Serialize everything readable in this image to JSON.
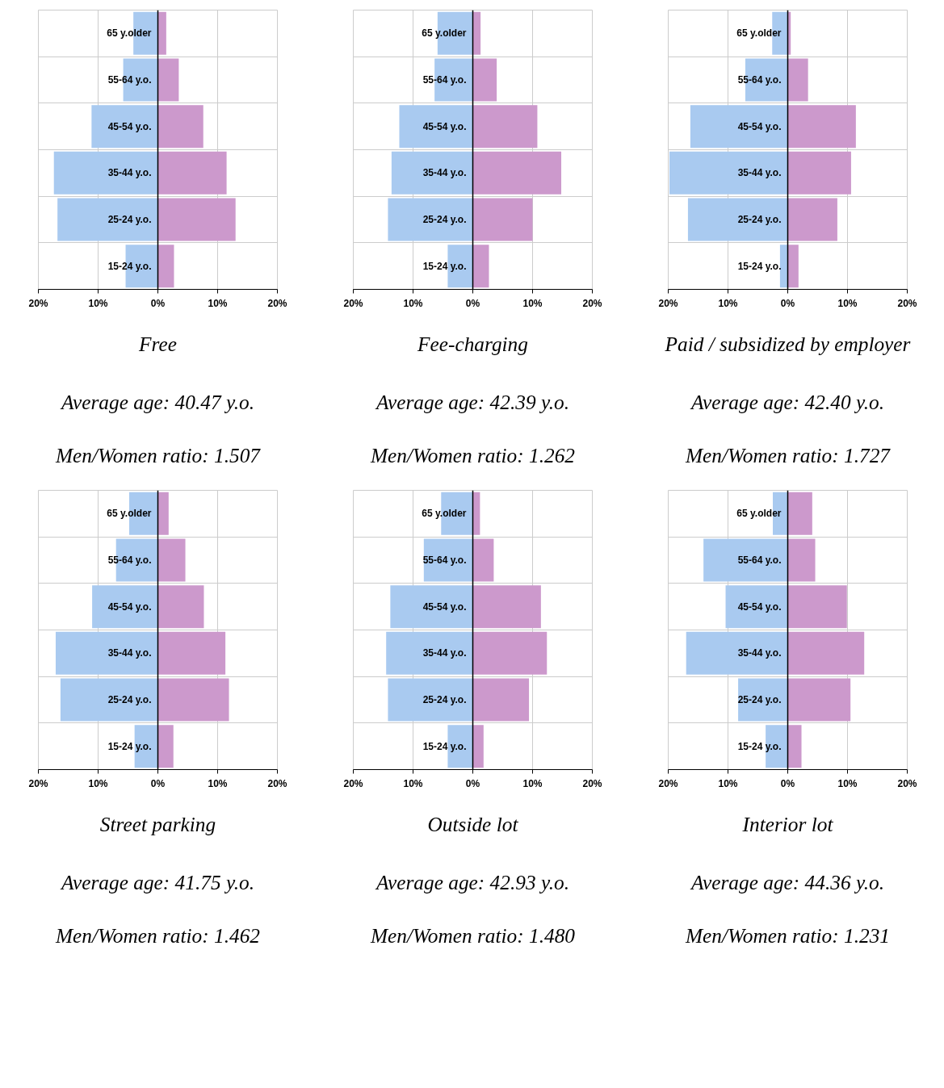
{
  "chart_data": [
    {
      "type": "bar",
      "orientation": "horizontal",
      "stacked": true,
      "title": "Free",
      "annotations": [
        "Average age: 40.47 y.o.",
        "Men/Women ratio: 1.507"
      ],
      "categories": [
        "65 y.older",
        "55-64 y.o.",
        "45-54 y.o.",
        "35-44 y.o.",
        "25-24 y.o.",
        "15-24 y.o."
      ],
      "series": [
        {
          "color": "#a9caf0",
          "values": [
            -4.1,
            -5.8,
            -11.1,
            -17.4,
            -16.8,
            -5.4
          ]
        },
        {
          "color": "#cc99cc",
          "values": [
            1.4,
            3.5,
            7.6,
            11.5,
            13.0,
            2.7
          ]
        }
      ],
      "xlim": [
        -20,
        20
      ],
      "xticks": [
        {
          "value": -20,
          "label": "20%"
        },
        {
          "value": -10,
          "label": "10%"
        },
        {
          "value": 0,
          "label": "0%"
        },
        {
          "value": 10,
          "label": "10%"
        },
        {
          "value": 20,
          "label": "20%"
        }
      ],
      "grid": true
    },
    {
      "type": "bar",
      "orientation": "horizontal",
      "stacked": true,
      "title": "Fee-charging",
      "annotations": [
        "Average age: 42.39 y.o.",
        "Men/Women ratio: 1.262"
      ],
      "categories": [
        "65 y.older",
        "55-64 y.o.",
        "45-54 y.o.",
        "35-44 y.o.",
        "25-24 y.o.",
        "15-24 y.o."
      ],
      "series": [
        {
          "color": "#a9caf0",
          "values": [
            -5.9,
            -6.4,
            -12.3,
            -13.6,
            -14.2,
            -4.2
          ]
        },
        {
          "color": "#cc99cc",
          "values": [
            1.3,
            4.0,
            10.8,
            14.8,
            10.0,
            2.7
          ]
        }
      ],
      "xlim": [
        -20,
        20
      ],
      "xticks": [
        {
          "value": -20,
          "label": "20%"
        },
        {
          "value": -10,
          "label": "10%"
        },
        {
          "value": 0,
          "label": "0%"
        },
        {
          "value": 10,
          "label": "10%"
        },
        {
          "value": 20,
          "label": "20%"
        }
      ],
      "grid": true
    },
    {
      "type": "bar",
      "orientation": "horizontal",
      "stacked": true,
      "title": "Paid / subsidized by employer",
      "annotations": [
        "Average age: 42.40 y.o.",
        "Men/Women ratio: 1.727"
      ],
      "categories": [
        "65 y.older",
        "55-64 y.o.",
        "45-54 y.o.",
        "35-44 y.o.",
        "25-24 y.o.",
        "15-24 y.o."
      ],
      "series": [
        {
          "color": "#a9caf0",
          "values": [
            -2.6,
            -7.1,
            -16.3,
            -19.8,
            -16.7,
            -1.3
          ]
        },
        {
          "color": "#cc99cc",
          "values": [
            0.5,
            3.4,
            11.4,
            10.6,
            8.3,
            1.8
          ]
        }
      ],
      "xlim": [
        -20,
        20
      ],
      "xticks": [
        {
          "value": -20,
          "label": "20%"
        },
        {
          "value": -10,
          "label": "10%"
        },
        {
          "value": 0,
          "label": "0%"
        },
        {
          "value": 10,
          "label": "10%"
        },
        {
          "value": 20,
          "label": "20%"
        }
      ],
      "grid": true
    },
    {
      "type": "bar",
      "orientation": "horizontal",
      "stacked": true,
      "title": "Street parking",
      "annotations": [
        "Average age: 41.75 y.o.",
        "Men/Women ratio: 1.462"
      ],
      "categories": [
        "65 y.older",
        "55-64 y.o.",
        "45-54 y.o.",
        "35-44 y.o.",
        "25-24 y.o.",
        "15-24 y.o."
      ],
      "series": [
        {
          "color": "#a9caf0",
          "values": [
            -4.8,
            -7.0,
            -11.0,
            -17.1,
            -16.3,
            -3.9
          ]
        },
        {
          "color": "#cc99cc",
          "values": [
            1.8,
            4.6,
            7.7,
            11.3,
            11.9,
            2.6
          ]
        }
      ],
      "xlim": [
        -20,
        20
      ],
      "xticks": [
        {
          "value": -20,
          "label": "20%"
        },
        {
          "value": -10,
          "label": "10%"
        },
        {
          "value": 0,
          "label": "0%"
        },
        {
          "value": 10,
          "label": "10%"
        },
        {
          "value": 20,
          "label": "20%"
        }
      ],
      "grid": true
    },
    {
      "type": "bar",
      "orientation": "horizontal",
      "stacked": true,
      "title": "Outside lot",
      "annotations": [
        "Average age: 42.93 y.o.",
        "Men/Women ratio: 1.480"
      ],
      "categories": [
        "65 y.older",
        "55-64 y.o.",
        "45-54 y.o.",
        "35-44 y.o.",
        "25-24 y.o.",
        "15-24 y.o."
      ],
      "series": [
        {
          "color": "#a9caf0",
          "values": [
            -5.3,
            -8.2,
            -13.8,
            -14.5,
            -14.2,
            -4.2
          ]
        },
        {
          "color": "#cc99cc",
          "values": [
            1.2,
            3.5,
            11.4,
            12.4,
            9.4,
            1.8
          ]
        }
      ],
      "xlim": [
        -20,
        20
      ],
      "xticks": [
        {
          "value": -20,
          "label": "20%"
        },
        {
          "value": -10,
          "label": "10%"
        },
        {
          "value": 0,
          "label": "0%"
        },
        {
          "value": 10,
          "label": "10%"
        },
        {
          "value": 20,
          "label": "20%"
        }
      ],
      "grid": true
    },
    {
      "type": "bar",
      "orientation": "horizontal",
      "stacked": true,
      "title": "Interior lot",
      "annotations": [
        "Average age: 44.36 y.o.",
        "Men/Women ratio: 1.231"
      ],
      "categories": [
        "65 y.older",
        "55-64 y.o.",
        "45-54 y.o.",
        "35-44 y.o.",
        "25-24 y.o.",
        "15-24 y.o."
      ],
      "series": [
        {
          "color": "#a9caf0",
          "values": [
            -2.5,
            -14.1,
            -10.4,
            -17.0,
            -8.3,
            -3.7
          ]
        },
        {
          "color": "#cc99cc",
          "values": [
            4.1,
            4.6,
            9.9,
            12.8,
            10.5,
            2.3
          ]
        }
      ],
      "xlim": [
        -20,
        20
      ],
      "xticks": [
        {
          "value": -20,
          "label": "20%"
        },
        {
          "value": -10,
          "label": "10%"
        },
        {
          "value": 0,
          "label": "0%"
        },
        {
          "value": 10,
          "label": "10%"
        },
        {
          "value": 20,
          "label": "20%"
        }
      ],
      "grid": true
    }
  ]
}
